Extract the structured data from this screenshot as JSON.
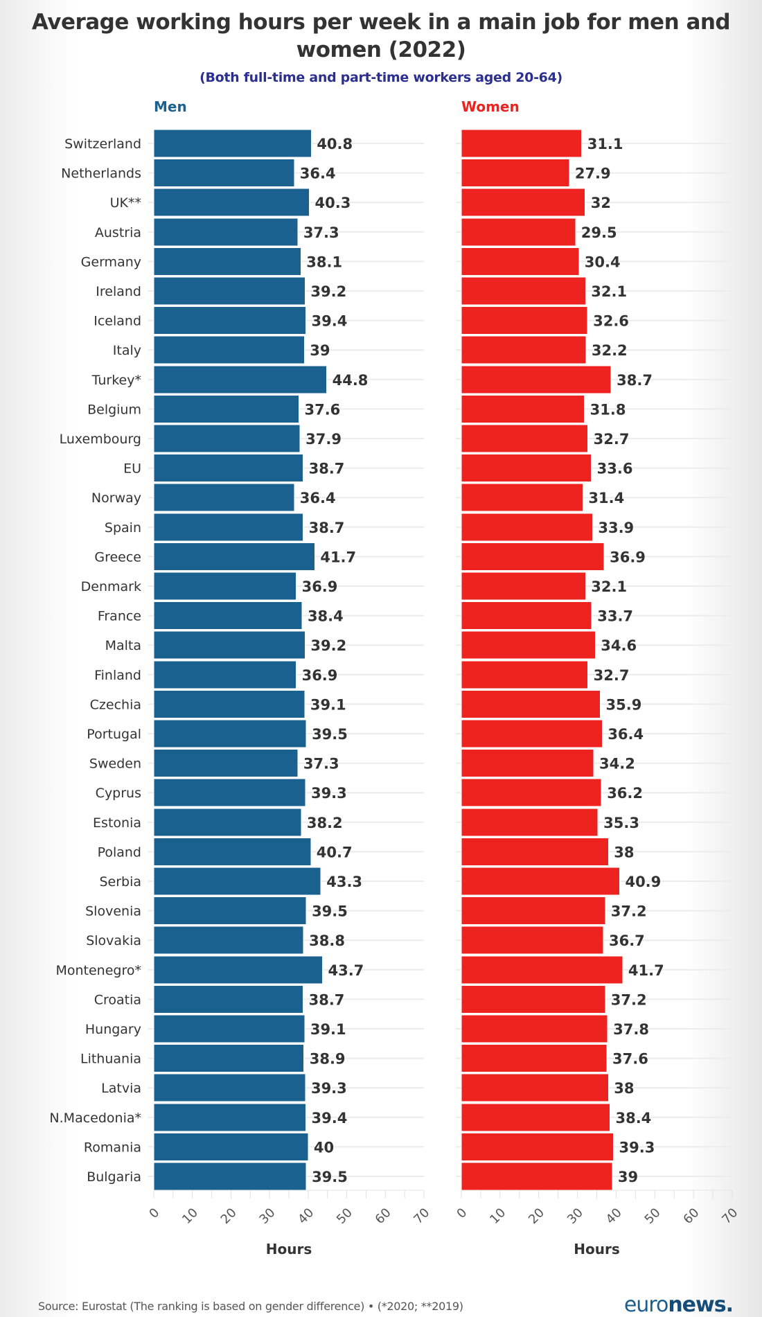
{
  "chart_data": {
    "type": "bar",
    "orientation": "horizontal",
    "title": "Average working hours per week in a main job for men and women (2022)",
    "title_lines": [
      "Average working hours per week in a main job for men and",
      "women (2022)"
    ],
    "subtitle": "(Both full-time and part-time workers aged 20-64)",
    "xlabel": "Hours",
    "xlim": [
      0,
      70
    ],
    "xticks": [
      0,
      10,
      20,
      30,
      40,
      50,
      60,
      70
    ],
    "grid": true,
    "categories": [
      "Switzerland",
      "Netherlands",
      "UK**",
      "Austria",
      "Germany",
      "Ireland",
      "Iceland",
      "Italy",
      "Turkey*",
      "Belgium",
      "Luxembourg",
      "EU",
      "Norway",
      "Spain",
      "Greece",
      "Denmark",
      "France",
      "Malta",
      "Finland",
      "Czechia",
      "Portugal",
      "Sweden",
      "Cyprus",
      "Estonia",
      "Poland",
      "Serbia",
      "Slovenia",
      "Slovakia",
      "Montenegro*",
      "Croatia",
      "Hungary",
      "Lithuania",
      "Latvia",
      "N.Macedonia*",
      "Romania",
      "Bulgaria"
    ],
    "series": [
      {
        "name": "Men",
        "color": "#1b6190",
        "values": [
          40.8,
          36.4,
          40.3,
          37.3,
          38.1,
          39.2,
          39.4,
          39,
          44.8,
          37.6,
          37.9,
          38.7,
          36.4,
          38.7,
          41.7,
          36.9,
          38.4,
          39.2,
          36.9,
          39.1,
          39.5,
          37.3,
          39.3,
          38.2,
          40.7,
          43.3,
          39.5,
          38.8,
          43.7,
          38.7,
          39.1,
          38.9,
          39.3,
          39.4,
          40,
          39.5
        ]
      },
      {
        "name": "Women",
        "color": "#ee231f",
        "values": [
          31.1,
          27.9,
          32,
          29.5,
          30.4,
          32.1,
          32.6,
          32.2,
          38.7,
          31.8,
          32.7,
          33.6,
          31.4,
          33.9,
          36.9,
          32.1,
          33.7,
          34.6,
          32.7,
          35.9,
          36.4,
          34.2,
          36.2,
          35.3,
          38,
          40.9,
          37.2,
          36.7,
          41.7,
          37.2,
          37.8,
          37.6,
          38,
          38.4,
          39.3,
          39
        ]
      }
    ],
    "panel_title_colors": {
      "Men": "#1b6190",
      "Women": "#ee231f"
    }
  },
  "footer": {
    "source": "Source: Eurostat (The ranking is based on gender difference) • (*2020; **2019)",
    "logo_light": "euro",
    "logo_bold": "news."
  }
}
